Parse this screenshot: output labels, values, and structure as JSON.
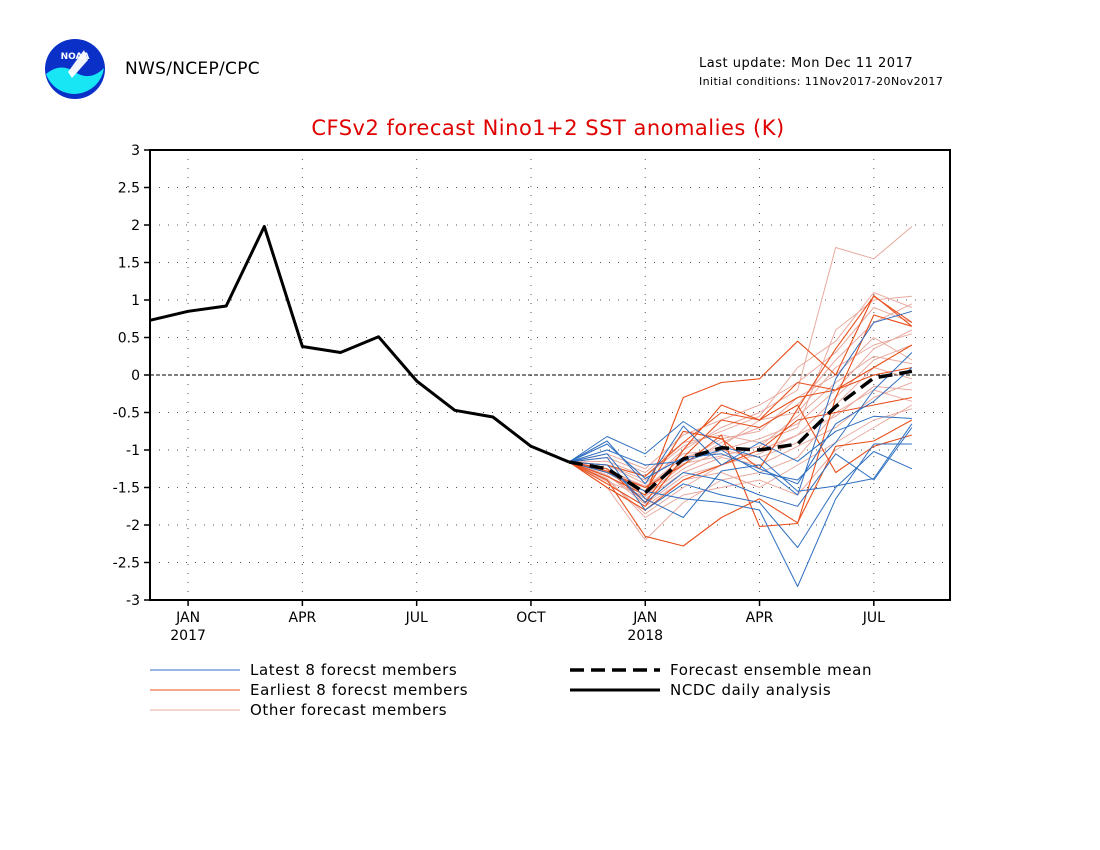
{
  "header": {
    "org": "NWS/NCEP/CPC",
    "logo_text": "NOAA",
    "last_update": "Last update: Mon Dec 11 2017",
    "initial_conditions": "Initial conditions: 11Nov2017-20Nov2017"
  },
  "colors": {
    "title": "#e00000",
    "latest": "#2f6fc0",
    "earliest": "#e8501c",
    "other": "#e8aaa0",
    "mean": "#000000",
    "analysis": "#000000"
  },
  "chart_data": {
    "type": "line",
    "title": "CFSv2 forecast Nino1+2 SST anomalies (K)",
    "xlabel": "",
    "ylabel": "",
    "x_unit": "month",
    "xlim": [
      "2016-12",
      "2018-09"
    ],
    "ylim": [
      -3,
      3
    ],
    "y_ticks": [
      -3,
      -2.5,
      -2,
      -1.5,
      -1,
      -0.5,
      0,
      0.5,
      1,
      1.5,
      2,
      2.5,
      3
    ],
    "x_ticks": [
      {
        "x": "2017-01",
        "label": "JAN",
        "sublabel": "2017"
      },
      {
        "x": "2017-04",
        "label": "APR",
        "sublabel": ""
      },
      {
        "x": "2017-07",
        "label": "JUL",
        "sublabel": ""
      },
      {
        "x": "2017-10",
        "label": "OCT",
        "sublabel": ""
      },
      {
        "x": "2018-01",
        "label": "JAN",
        "sublabel": "2018"
      },
      {
        "x": "2018-04",
        "label": "APR",
        "sublabel": ""
      },
      {
        "x": "2018-07",
        "label": "JUL",
        "sublabel": ""
      }
    ],
    "grid": true,
    "zero_line": true,
    "legend_position": "bottom",
    "legend": [
      {
        "label": "Latest 8 forecst members",
        "style": "latest"
      },
      {
        "label": "Earliest 8 forecst members",
        "style": "earliest"
      },
      {
        "label": "Other forecast members",
        "style": "other"
      },
      {
        "label": "Forecast ensemble mean",
        "style": "mean"
      },
      {
        "label": "NCDC daily analysis",
        "style": "analysis"
      }
    ],
    "analysis": {
      "name": "NCDC daily analysis",
      "x": [
        "2016-12",
        "2017-01",
        "2017-02",
        "2017-03",
        "2017-04",
        "2017-05",
        "2017-06",
        "2017-07",
        "2017-08",
        "2017-09",
        "2017-10",
        "2017-11"
      ],
      "values": [
        0.73,
        0.85,
        0.92,
        1.98,
        0.38,
        0.3,
        0.51,
        -0.08,
        -0.47,
        -0.56,
        -0.95,
        -1.16
      ]
    },
    "ensemble_mean": {
      "name": "Forecast ensemble mean",
      "x": [
        "2017-11",
        "2017-12",
        "2018-01",
        "2018-02",
        "2018-03",
        "2018-04",
        "2018-05",
        "2018-06",
        "2018-07",
        "2018-08"
      ],
      "values": [
        -1.16,
        -1.25,
        -1.57,
        -1.12,
        -0.97,
        -1.0,
        -0.92,
        -0.42,
        -0.04,
        0.05
      ]
    },
    "member_months": [
      "2017-11",
      "2017-12",
      "2018-01",
      "2018-02",
      "2018-03",
      "2018-04",
      "2018-05",
      "2018-06",
      "2018-07",
      "2018-08"
    ],
    "latest_members": [
      [
        -1.16,
        -0.82,
        -1.05,
        -0.62,
        -0.95,
        -1.1,
        -1.55,
        -1.48,
        -1.38,
        -0.65
      ],
      [
        -1.16,
        -0.92,
        -1.38,
        -1.1,
        -1.05,
        -1.25,
        -1.45,
        -0.65,
        -0.35,
        0.1
      ],
      [
        -1.16,
        -1.05,
        -1.65,
        -1.9,
        -1.28,
        -1.2,
        -1.6,
        -0.05,
        0.7,
        0.85
      ],
      [
        -1.16,
        -1.1,
        -1.8,
        -1.45,
        -1.6,
        -1.7,
        -2.3,
        -1.5,
        -1.02,
        -1.25
      ],
      [
        -1.16,
        -0.88,
        -1.45,
        -0.68,
        -1.2,
        -0.9,
        -1.15,
        -0.75,
        -0.55,
        -0.58
      ],
      [
        -1.16,
        -1.3,
        -1.55,
        -1.65,
        -1.7,
        -1.8,
        -2.82,
        -1.65,
        -0.92,
        -0.92
      ],
      [
        -1.16,
        -1.0,
        -1.2,
        -1.15,
        -1.0,
        -1.3,
        -1.4,
        -0.9,
        -0.2,
        0.3
      ],
      [
        -1.16,
        -1.2,
        -1.7,
        -1.3,
        -1.4,
        -1.6,
        -1.75,
        -1.05,
        -1.4,
        -0.7
      ]
    ],
    "earliest_members": [
      [
        -1.16,
        -1.4,
        -2.15,
        -2.28,
        -1.9,
        -1.65,
        -1.97,
        -0.95,
        -0.88,
        -0.6
      ],
      [
        -1.16,
        -1.35,
        -1.6,
        -0.3,
        -0.1,
        -0.05,
        0.45,
        0.0,
        1.06,
        0.65
      ],
      [
        -1.16,
        -1.25,
        -1.7,
        -1.0,
        -0.4,
        -0.6,
        -0.1,
        -0.2,
        0.1,
        0.4
      ],
      [
        -1.16,
        -1.3,
        -1.5,
        -1.2,
        -0.8,
        -2.02,
        -1.98,
        -0.3,
        0.8,
        0.65
      ],
      [
        -1.16,
        -1.45,
        -1.75,
        -1.1,
        -0.6,
        -0.7,
        -0.4,
        -1.3,
        -0.95,
        -0.8
      ],
      [
        -1.16,
        -1.2,
        -1.35,
        -0.9,
        -0.5,
        -0.6,
        -0.3,
        -0.2,
        0.0,
        0.1
      ],
      [
        -1.16,
        -1.5,
        -1.8,
        -1.4,
        -1.2,
        -1.0,
        -0.6,
        -0.5,
        -0.4,
        -0.3
      ],
      [
        -1.16,
        -1.28,
        -1.55,
        -0.75,
        -0.85,
        -1.25,
        -0.45,
        0.35,
        1.05,
        0.7
      ]
    ],
    "other_members": [
      [
        -1.16,
        -1.3,
        -1.6,
        -1.2,
        -0.9,
        -0.7,
        -0.4,
        0.2,
        0.7,
        0.95
      ],
      [
        -1.16,
        -1.2,
        -1.45,
        -1.0,
        -0.7,
        -0.5,
        -0.2,
        1.7,
        1.55,
        1.98
      ],
      [
        -1.16,
        -1.4,
        -1.85,
        -1.5,
        -1.2,
        -1.0,
        -0.8,
        -0.3,
        0.2,
        0.4
      ],
      [
        -1.16,
        -1.1,
        -1.3,
        -0.9,
        -0.8,
        -0.9,
        -0.7,
        0.6,
        1.0,
        1.05
      ],
      [
        -1.16,
        -1.5,
        -2.2,
        -1.7,
        -1.4,
        -1.3,
        -1.1,
        -0.5,
        -0.2,
        -0.35
      ],
      [
        -1.16,
        -1.25,
        -1.5,
        -1.1,
        -0.95,
        -0.6,
        -0.5,
        0.1,
        0.4,
        0.55
      ],
      [
        -1.16,
        -1.35,
        -1.65,
        -1.3,
        -1.1,
        -1.2,
        -0.95,
        -0.7,
        -0.3,
        -0.1
      ],
      [
        -1.16,
        -1.05,
        -1.25,
        -0.8,
        -0.6,
        -0.4,
        -0.1,
        0.3,
        0.9,
        0.7
      ],
      [
        -1.16,
        -1.45,
        -1.75,
        -1.4,
        -1.3,
        -1.5,
        -1.2,
        -0.9,
        -0.6,
        -0.45
      ],
      [
        -1.16,
        -1.3,
        -1.55,
        -1.15,
        -0.85,
        -0.75,
        -0.3,
        0.0,
        0.5,
        0.2
      ],
      [
        -1.16,
        -1.2,
        -1.4,
        -1.05,
        -1.0,
        -1.1,
        -0.9,
        -0.4,
        0.1,
        -0.05
      ],
      [
        -1.16,
        -1.38,
        -1.9,
        -1.6,
        -1.5,
        -1.4,
        -1.6,
        -1.0,
        -0.7,
        -0.4
      ],
      [
        -1.16,
        -1.15,
        -1.35,
        -0.95,
        -0.75,
        -0.55,
        0.1,
        0.45,
        1.1,
        0.9
      ],
      [
        -1.16,
        -1.42,
        -1.62,
        -1.25,
        -1.0,
        -0.85,
        -0.65,
        -0.2,
        0.35,
        0.6
      ],
      [
        -1.16,
        -1.28,
        -1.48,
        -1.18,
        -1.08,
        -0.95,
        -0.55,
        -0.1,
        0.25,
        0.15
      ],
      [
        -1.16,
        -1.33,
        -1.72,
        -1.35,
        -1.2,
        -1.05,
        -0.8,
        -0.55,
        -0.15,
        -0.2
      ]
    ]
  }
}
